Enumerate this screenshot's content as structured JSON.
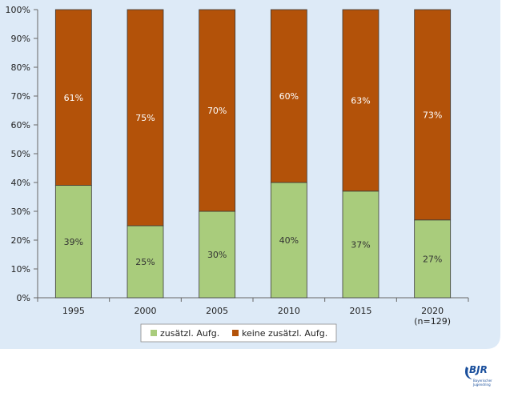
{
  "chart_data": {
    "type": "bar",
    "stacked": true,
    "percent_axis": true,
    "categories": [
      "1995",
      "2000",
      "2005",
      "2010",
      "2015",
      "2020"
    ],
    "category_sublabels": [
      "",
      "",
      "",
      "",
      "",
      "(n=129)"
    ],
    "series": [
      {
        "name": "zusätzl. Aufg.",
        "values": [
          39,
          25,
          30,
          40,
          37,
          27
        ],
        "value_labels": [
          "39%",
          "25%",
          "30%",
          "40%",
          "37%",
          "27%"
        ],
        "color": "#a9cc7c"
      },
      {
        "name": "keine zusätzl. Aufg.",
        "values": [
          61,
          75,
          70,
          60,
          63,
          73
        ],
        "value_labels": [
          "61%",
          "75%",
          "70%",
          "60%",
          "63%",
          "73%"
        ],
        "color": "#b35209"
      }
    ],
    "ylim": [
      0,
      100
    ],
    "yticks": [
      0,
      10,
      20,
      30,
      40,
      50,
      60,
      70,
      80,
      90,
      100
    ],
    "ytick_labels": [
      "0%",
      "10%",
      "20%",
      "30%",
      "40%",
      "50%",
      "60%",
      "70%",
      "80%",
      "90%",
      "100%"
    ],
    "legend_position": "bottom-center",
    "grid": false
  },
  "colors": {
    "panel_background": "#ddeaf7",
    "bar_outline": "#3a3a3a",
    "axis": "#666666"
  },
  "logo": {
    "text": "BJR",
    "subtitle_line1": "Bayerischer",
    "subtitle_line2": "Jugendring"
  }
}
